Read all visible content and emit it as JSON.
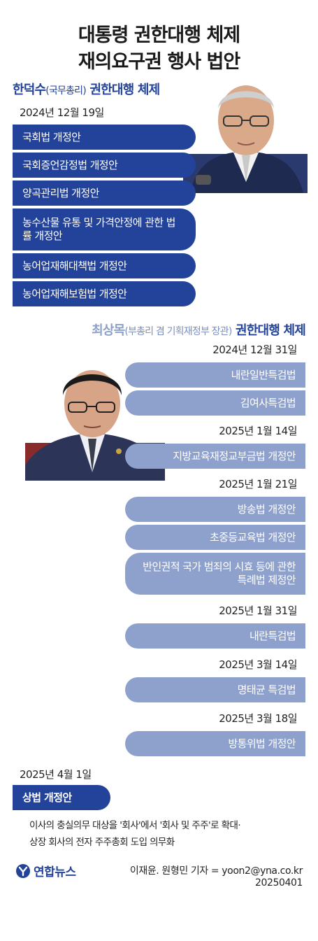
{
  "title": {
    "line1": "대통령 권한대행 체제",
    "line2": "재의요구권 행사 법안"
  },
  "section1": {
    "name": "한덕수",
    "role": "(국무총리)",
    "suffix": "권한대행 체제",
    "date": "2024년 12월 19일",
    "bills": [
      "국회법 개정안",
      "국회증언감정법 개정안",
      "양곡관리법 개정안",
      "농수산물 유통 및 가격안정에 관한 법률 개정안",
      "농어업재해대책법 개정안",
      "농어업재해보험법 개정안"
    ]
  },
  "section2": {
    "name": "최상목",
    "role": "(부총리 겸 기획재정부 장관)",
    "suffix": "권한대행 체제",
    "groups": [
      {
        "date": "2024년 12월 31일",
        "bills": [
          "내란일반특검법",
          "김여사특검법"
        ]
      },
      {
        "date": "2025년 1월 14일",
        "bills": [
          "지방교육재정교부금법 개정안"
        ]
      },
      {
        "date": "2025년 1월 21일",
        "bills": [
          "방송법 개정안",
          "초중등교육법 개정안",
          "반인권적 국가 범죄의 시효 등에 관한 특례법 제정안"
        ]
      },
      {
        "date": "2025년 1월 31일",
        "bills": [
          "내란특검법"
        ]
      },
      {
        "date": "2025년 3월 14일",
        "bills": [
          "명태균 특검법"
        ]
      },
      {
        "date": "2025년 3월 18일",
        "bills": [
          "방통위법 개정안"
        ]
      }
    ]
  },
  "section3": {
    "date": "2025년 4월 1일",
    "bill": "상법 개정안",
    "note_line1": "이사의 충실의무 대상을 '회사'에서 '회사 및 주주'로 확대·",
    "note_line2": "상장 회사의 전자 주주총회 도입 의무화"
  },
  "footer": {
    "logo_text": "연합뉴스",
    "credit_line1": "이재윤. 원형민 기자 = yoon2@yna.co.kr",
    "credit_line2": "20250401"
  },
  "colors": {
    "dark_blue": "#23439a",
    "light_blue": "#8ea1cc"
  }
}
